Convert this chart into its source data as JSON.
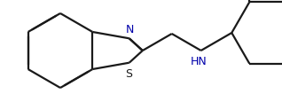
{
  "background_color": "#ffffff",
  "bond_color": "#1a1a1a",
  "N_color": "#0000aa",
  "S_color": "#1a1a1a",
  "HN_color": "#0000aa",
  "bond_lw": 1.6,
  "dbo": 0.022,
  "figsize": [
    3.18,
    1.16
  ],
  "dpi": 100,
  "xlim": [
    0.0,
    3.18
  ],
  "ylim": [
    0.0,
    1.16
  ]
}
